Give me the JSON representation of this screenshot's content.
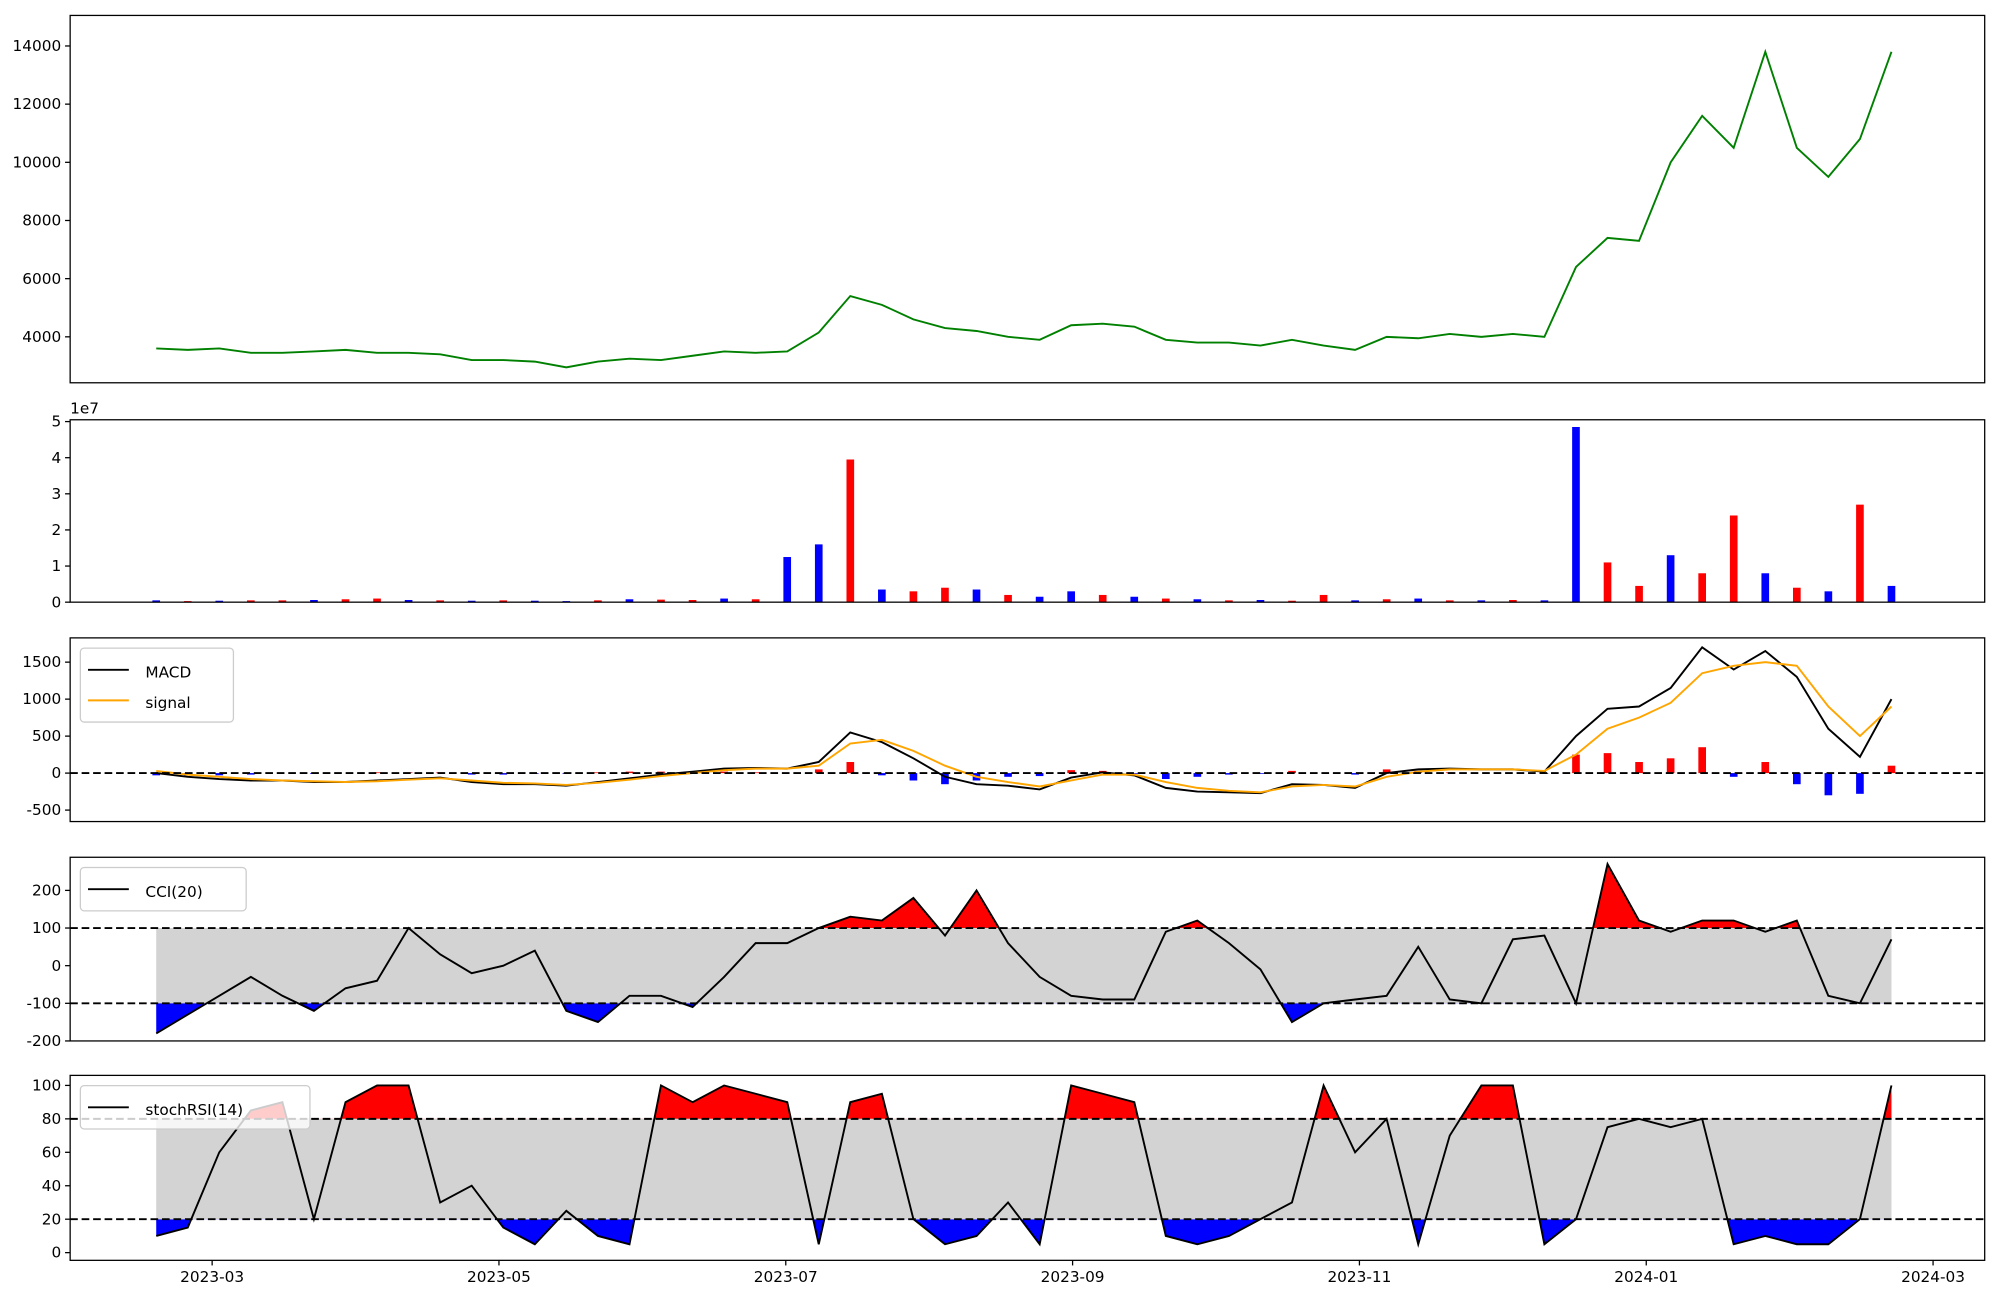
{
  "chart_data": [
    {
      "type": "line",
      "color": "green",
      "x": [
        1.61,
        1.83,
        2.05,
        2.27,
        2.49,
        2.71,
        2.93,
        3.15,
        3.37,
        3.59,
        3.81,
        4.03,
        4.25,
        4.47,
        4.69,
        4.91,
        5.13,
        5.35,
        5.57,
        5.79,
        6.01,
        6.23,
        6.45,
        6.67,
        6.89,
        7.11,
        7.33,
        7.55,
        7.77,
        7.99,
        8.21,
        8.43,
        8.65,
        8.87,
        9.09,
        9.31,
        9.53,
        9.75,
        9.97,
        10.19,
        10.41,
        10.63,
        10.85,
        11.07,
        11.29,
        11.51,
        11.73,
        11.95,
        12.17,
        12.39,
        12.61,
        12.83,
        13.05,
        13.27,
        13.49,
        13.71
      ],
      "values": [
        3600,
        3550,
        3600,
        3450,
        3450,
        3500,
        3550,
        3450,
        3450,
        3400,
        3200,
        3200,
        3150,
        2950,
        3150,
        3250,
        3200,
        3350,
        3500,
        3450,
        3500,
        4150,
        5400,
        5100,
        4600,
        4300,
        4200,
        4000,
        3900,
        4400,
        4450,
        4350,
        3900,
        3800,
        3800,
        3700,
        3900,
        3700,
        3550,
        4000,
        3950,
        4100,
        4000,
        4100,
        4000,
        6400,
        7400,
        7300,
        10000,
        11600,
        10500,
        13800,
        10500,
        9500,
        10800,
        13800
      ],
      "xlim": [
        1.01,
        14.36
      ],
      "ylim": [
        2420,
        15050
      ],
      "yticks": [
        4000,
        6000,
        8000,
        10000,
        12000,
        14000
      ]
    },
    {
      "type": "bar",
      "offset_label": "1e7",
      "x": [
        1.61,
        1.83,
        2.05,
        2.27,
        2.49,
        2.71,
        2.93,
        3.15,
        3.37,
        3.59,
        3.81,
        4.03,
        4.25,
        4.47,
        4.69,
        4.91,
        5.13,
        5.35,
        5.57,
        5.79,
        6.01,
        6.23,
        6.45,
        6.67,
        6.89,
        7.11,
        7.33,
        7.55,
        7.77,
        7.99,
        8.21,
        8.43,
        8.65,
        8.87,
        9.09,
        9.31,
        9.53,
        9.75,
        9.97,
        10.19,
        10.41,
        10.63,
        10.85,
        11.07,
        11.29,
        11.51,
        11.73,
        11.95,
        12.17,
        12.39,
        12.61,
        12.83,
        13.05,
        13.27,
        13.49,
        13.71
      ],
      "values": [
        0.05,
        0.03,
        0.04,
        0.05,
        0.05,
        0.06,
        0.08,
        0.1,
        0.06,
        0.05,
        0.04,
        0.05,
        0.04,
        0.03,
        0.05,
        0.08,
        0.07,
        0.06,
        0.1,
        0.08,
        1.25,
        1.6,
        3.95,
        0.35,
        0.3,
        0.4,
        0.35,
        0.2,
        0.15,
        0.3,
        0.2,
        0.15,
        0.1,
        0.08,
        0.05,
        0.06,
        0.04,
        0.2,
        0.05,
        0.08,
        0.1,
        0.05,
        0.05,
        0.06,
        0.05,
        4.85,
        1.1,
        0.45,
        1.3,
        0.8,
        2.4,
        0.8,
        0.4,
        0.3,
        2.7,
        0.45
      ],
      "colors": [
        "blue",
        "red",
        "blue",
        "red",
        "red",
        "blue",
        "red",
        "red",
        "blue",
        "red",
        "blue",
        "red",
        "blue",
        "blue",
        "red",
        "blue",
        "red",
        "red",
        "blue",
        "red",
        "blue",
        "blue",
        "red",
        "blue",
        "red",
        "red",
        "blue",
        "red",
        "blue",
        "blue",
        "red",
        "blue",
        "red",
        "blue",
        "red",
        "blue",
        "red",
        "red",
        "blue",
        "red",
        "blue",
        "red",
        "blue",
        "red",
        "blue",
        "blue",
        "red",
        "red",
        "blue",
        "red",
        "red",
        "blue",
        "red",
        "blue",
        "red",
        "blue"
      ],
      "xlim": [
        1.01,
        14.36
      ],
      "ylim": [
        0,
        5.05
      ],
      "yticks": [
        0,
        1,
        2,
        3,
        4,
        5
      ]
    },
    {
      "type": "macd",
      "x": [
        1.61,
        1.83,
        2.05,
        2.27,
        2.49,
        2.71,
        2.93,
        3.15,
        3.37,
        3.59,
        3.81,
        4.03,
        4.25,
        4.47,
        4.69,
        4.91,
        5.13,
        5.35,
        5.57,
        5.79,
        6.01,
        6.23,
        6.45,
        6.67,
        6.89,
        7.11,
        7.33,
        7.55,
        7.77,
        7.99,
        8.21,
        8.43,
        8.65,
        8.87,
        9.09,
        9.31,
        9.53,
        9.75,
        9.97,
        10.19,
        10.41,
        10.63,
        10.85,
        11.07,
        11.29,
        11.51,
        11.73,
        11.95,
        12.17,
        12.39,
        12.61,
        12.83,
        13.05,
        13.27,
        13.49,
        13.71
      ],
      "series": [
        {
          "name": "MACD",
          "color": "black",
          "values": [
            0,
            -50,
            -80,
            -100,
            -100,
            -120,
            -120,
            -100,
            -80,
            -60,
            -120,
            -150,
            -150,
            -170,
            -120,
            -70,
            -20,
            20,
            60,
            70,
            60,
            150,
            550,
            420,
            200,
            -50,
            -150,
            -170,
            -220,
            -60,
            10,
            -30,
            -200,
            -250,
            -260,
            -270,
            -150,
            -160,
            -200,
            0,
            50,
            60,
            50,
            50,
            20,
            500,
            870,
            900,
            1150,
            1700,
            1400,
            1650,
            1300,
            600,
            220,
            1000
          ]
        },
        {
          "name": "signal",
          "color": "orange",
          "values": [
            30,
            -20,
            -50,
            -80,
            -100,
            -110,
            -120,
            -110,
            -90,
            -70,
            -100,
            -130,
            -140,
            -160,
            -130,
            -90,
            -40,
            0,
            40,
            60,
            60,
            100,
            400,
            450,
            300,
            100,
            -50,
            -120,
            -180,
            -100,
            -20,
            -20,
            -120,
            -200,
            -240,
            -260,
            -180,
            -160,
            -180,
            -50,
            20,
            50,
            50,
            50,
            30,
            250,
            600,
            750,
            950,
            1350,
            1450,
            1500,
            1450,
            900,
            500,
            900
          ]
        }
      ],
      "histogram": {
        "up_color": "red",
        "down_color": "blue",
        "values": [
          -30,
          -30,
          -30,
          -20,
          0,
          -10,
          0,
          10,
          10,
          10,
          -20,
          -20,
          -10,
          -10,
          10,
          20,
          20,
          20,
          20,
          10,
          0,
          50,
          150,
          -30,
          -100,
          -150,
          -100,
          -50,
          -40,
          40,
          30,
          -10,
          -80,
          -50,
          -20,
          -10,
          30,
          0,
          -20,
          50,
          30,
          10,
          0,
          0,
          -10,
          250,
          270,
          150,
          200,
          350,
          -50,
          150,
          -150,
          -300,
          -280,
          100
        ]
      },
      "thresholds": [
        0
      ],
      "legend": "upper left",
      "xlim": [
        1.01,
        14.36
      ],
      "ylim": [
        -655,
        1828
      ],
      "yticks": [
        -500,
        0,
        500,
        1000,
        1500
      ]
    },
    {
      "type": "oscillator",
      "band_color": "#d3d3d3",
      "over_color": "red",
      "under_color": "blue",
      "x": [
        1.61,
        1.83,
        2.05,
        2.27,
        2.49,
        2.71,
        2.93,
        3.15,
        3.37,
        3.59,
        3.81,
        4.03,
        4.25,
        4.47,
        4.69,
        4.91,
        5.13,
        5.35,
        5.57,
        5.79,
        6.01,
        6.23,
        6.45,
        6.67,
        6.89,
        7.11,
        7.33,
        7.55,
        7.77,
        7.99,
        8.21,
        8.43,
        8.65,
        8.87,
        9.09,
        9.31,
        9.53,
        9.75,
        9.97,
        10.19,
        10.41,
        10.63,
        10.85,
        11.07,
        11.29,
        11.51,
        11.73,
        11.95,
        12.17,
        12.39,
        12.61,
        12.83,
        13.05,
        13.27,
        13.49,
        13.71
      ],
      "series": [
        {
          "name": "CCI(20)",
          "color": "black",
          "values": [
            -180,
            -130,
            -80,
            -30,
            -80,
            -120,
            -60,
            -40,
            100,
            30,
            -20,
            0,
            40,
            -120,
            -150,
            -80,
            -80,
            -110,
            -30,
            60,
            60,
            100,
            130,
            120,
            180,
            80,
            200,
            60,
            -30,
            -80,
            -90,
            -90,
            90,
            120,
            60,
            -10,
            -150,
            -100,
            -90,
            -80,
            50,
            -90,
            -100,
            70,
            80,
            -100,
            270,
            120,
            90,
            120,
            120,
            90,
            120,
            -80,
            -100,
            70
          ]
        }
      ],
      "thresholds": [
        -100,
        100
      ],
      "legend": "upper left",
      "xlim": [
        1.01,
        14.36
      ],
      "ylim": [
        -200,
        288
      ],
      "yticks": [
        -200,
        -100,
        0,
        100,
        200
      ]
    },
    {
      "type": "oscillator",
      "band_color": "#d3d3d3",
      "over_color": "red",
      "under_color": "blue",
      "x": [
        1.61,
        1.83,
        2.05,
        2.27,
        2.49,
        2.71,
        2.93,
        3.15,
        3.37,
        3.59,
        3.81,
        4.03,
        4.25,
        4.47,
        4.69,
        4.91,
        5.13,
        5.35,
        5.57,
        5.79,
        6.01,
        6.23,
        6.45,
        6.67,
        6.89,
        7.11,
        7.33,
        7.55,
        7.77,
        7.99,
        8.21,
        8.43,
        8.65,
        8.87,
        9.09,
        9.31,
        9.53,
        9.75,
        9.97,
        10.19,
        10.41,
        10.63,
        10.85,
        11.07,
        11.29,
        11.51,
        11.73,
        11.95,
        12.17,
        12.39,
        12.61,
        12.83,
        13.05,
        13.27,
        13.49,
        13.71
      ],
      "series": [
        {
          "name": "stochRSI(14)",
          "color": "black",
          "values": [
            10,
            15,
            60,
            85,
            90,
            20,
            90,
            100,
            100,
            30,
            40,
            15,
            5,
            25,
            10,
            5,
            100,
            90,
            100,
            95,
            90,
            5,
            90,
            95,
            20,
            5,
            10,
            30,
            5,
            100,
            95,
            90,
            10,
            5,
            10,
            20,
            30,
            100,
            60,
            80,
            5,
            70,
            100,
            100,
            5,
            20,
            75,
            80,
            75,
            80,
            5,
            10,
            5,
            5,
            20,
            100
          ]
        }
      ],
      "thresholds": [
        20,
        80
      ],
      "legend": "upper left",
      "xlim": [
        1.01,
        14.36
      ],
      "ylim": [
        -4.6,
        106
      ],
      "yticks": [
        0,
        20,
        40,
        60,
        80,
        100
      ],
      "xticks": [
        {
          "value": 2,
          "label": "2023-03"
        },
        {
          "value": 4,
          "label": "2023-05"
        },
        {
          "value": 6,
          "label": "2023-07"
        },
        {
          "value": 8,
          "label": "2023-09"
        },
        {
          "value": 10,
          "label": "2023-11"
        },
        {
          "value": 12,
          "label": "2024-01"
        },
        {
          "value": 14,
          "label": "2024-03"
        }
      ]
    }
  ]
}
